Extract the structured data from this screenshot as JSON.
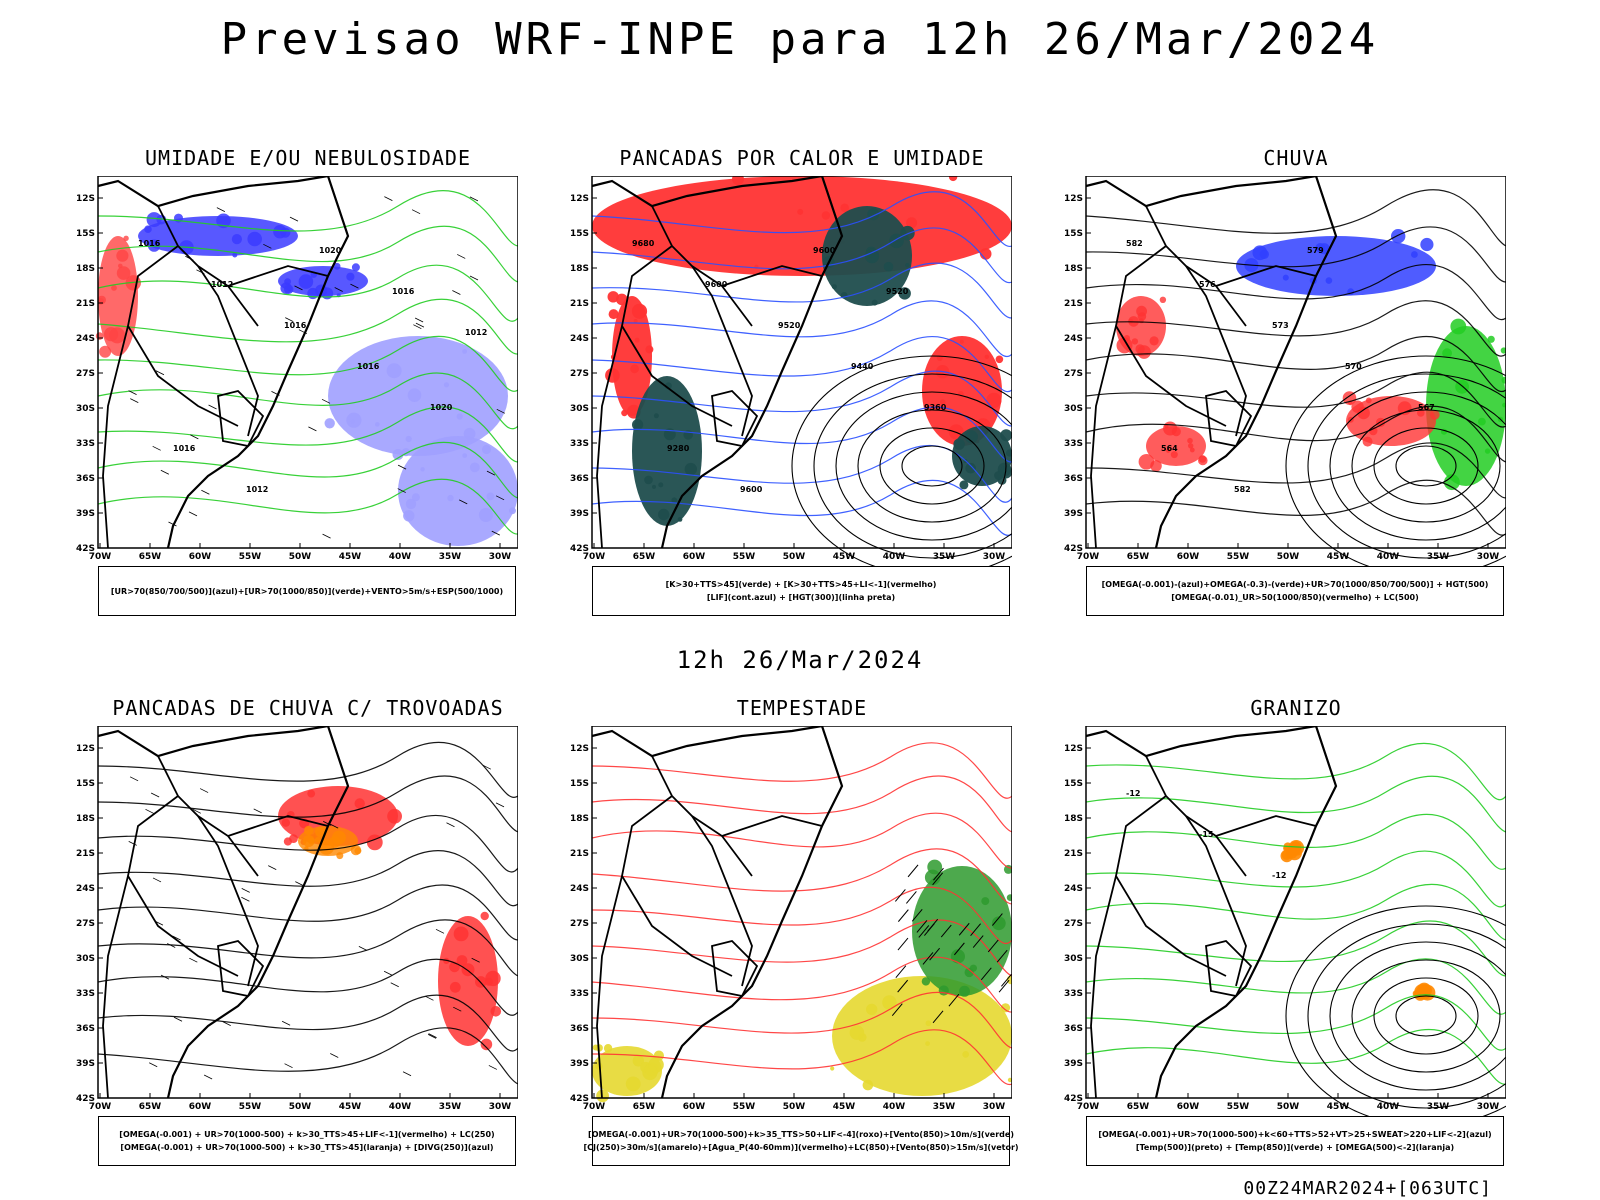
{
  "title": "Previsao WRF-INPE  para 12h 26/Mar/2024",
  "subtitle": "12h 26/Mar/2024",
  "footer": "00Z24MAR2024+[063UTC]",
  "axes": {
    "lat_labels": [
      "12S",
      "15S",
      "18S",
      "21S",
      "24S",
      "27S",
      "30S",
      "33S",
      "36S",
      "39S",
      "42S"
    ],
    "lon_labels": [
      "70W",
      "65W",
      "60W",
      "55W",
      "50W",
      "45W",
      "40W",
      "35W",
      "30W"
    ]
  },
  "panels": [
    {
      "title": "UMIDADE E/OU NEBULOSIDADE",
      "legend": [
        "[UR>70(850/700/500)](azul)+[UR>70(1000/850)](verde)+VENTO>5m/s+ESP(500/1000)"
      ],
      "contour_labels": [
        "1016",
        "1012",
        "1016",
        "1016",
        "1020",
        "1016",
        "1012",
        "1020",
        "1016",
        "1012"
      ]
    },
    {
      "title": "PANCADAS POR CALOR E UMIDADE",
      "legend": [
        "[K>30+TTS>45](verde) + [K>30+TTS>45+LI<-1](vermelho)",
        "[LIF](cont.azul) + [HGT(300)](linha preta)"
      ],
      "contour_labels": [
        "9680",
        "9600",
        "9520",
        "9440",
        "9360",
        "9280",
        "9600",
        "9600",
        "9520"
      ]
    },
    {
      "title": "CHUVA",
      "legend": [
        "[OMEGA(-0.001)-(azul)+OMEGA(-0.3)-(verde)+UR>70(1000/850/700/500)] + HGT(500)",
        "[OMEGA(-0.01)_UR>50(1000/850)(vermelho) + LC(500)"
      ],
      "contour_labels": [
        "582",
        "576",
        "573",
        "570",
        "567",
        "564",
        "582",
        "579"
      ]
    },
    {
      "title": "PANCADAS DE CHUVA C/ TROVOADAS",
      "legend": [
        "[OMEGA(-0.001) + UR>70(1000-500) + k>30_TTS>45+LIF<-1](vermelho) + LC(250)",
        "[OMEGA(-0.001) + UR>70(1000-500) + k>30_TTS>45](laranja) + [DIVG(250)](azul)"
      ],
      "contour_labels": []
    },
    {
      "title": "TEMPESTADE",
      "legend": [
        "[OMEGA(-0.001)+UR>70(1000-500)+k>35_TTS>50+LIF<-4](roxo)+[Vento(850)>10m/s](verde)",
        "[CJ(250)>30m/s](amarelo)+[Agua_P(40-60mm)](vermelho)+LC(850)+[Vento(850)>15m/s](vetor)"
      ],
      "contour_labels": []
    },
    {
      "title": "GRANIZO",
      "legend": [
        "[OMEGA(-0.001)+UR>70(1000-500)+k<60+TTS>52+VT>25+SWEAT>220+LIF<-2](azul)",
        "[Temp(500)](preto) + [Temp(850)](verde) + [OMEGA(500)<-2](laranja)"
      ],
      "contour_labels": [
        "-12",
        "-15",
        "-12"
      ]
    }
  ]
}
